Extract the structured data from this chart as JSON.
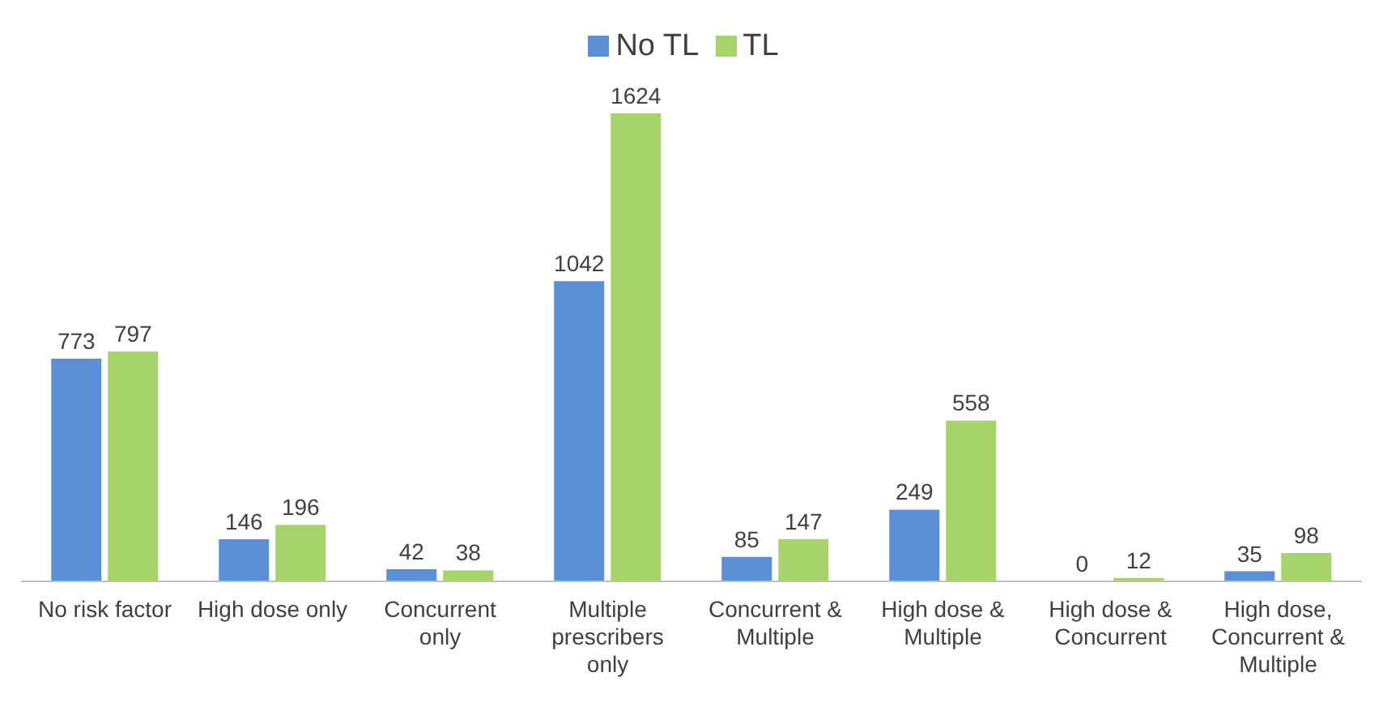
{
  "chart_data": {
    "type": "bar",
    "categories": [
      "No risk factor",
      "High dose only",
      "Concurrent only",
      "Multiple prescribers only",
      "Concurrent & Multiple",
      "High dose & Multiple",
      "High dose & Concurrent",
      "High dose, Concurrent & Multiple"
    ],
    "series": [
      {
        "name": "No TL",
        "color": "#5b8fd6",
        "values": [
          773,
          146,
          42,
          1042,
          85,
          249,
          0,
          35
        ]
      },
      {
        "name": "TL",
        "color": "#a6d46a",
        "values": [
          797,
          196,
          38,
          1624,
          147,
          558,
          12,
          98
        ]
      }
    ],
    "data_labels": true,
    "legend": "top",
    "grid": false
  }
}
